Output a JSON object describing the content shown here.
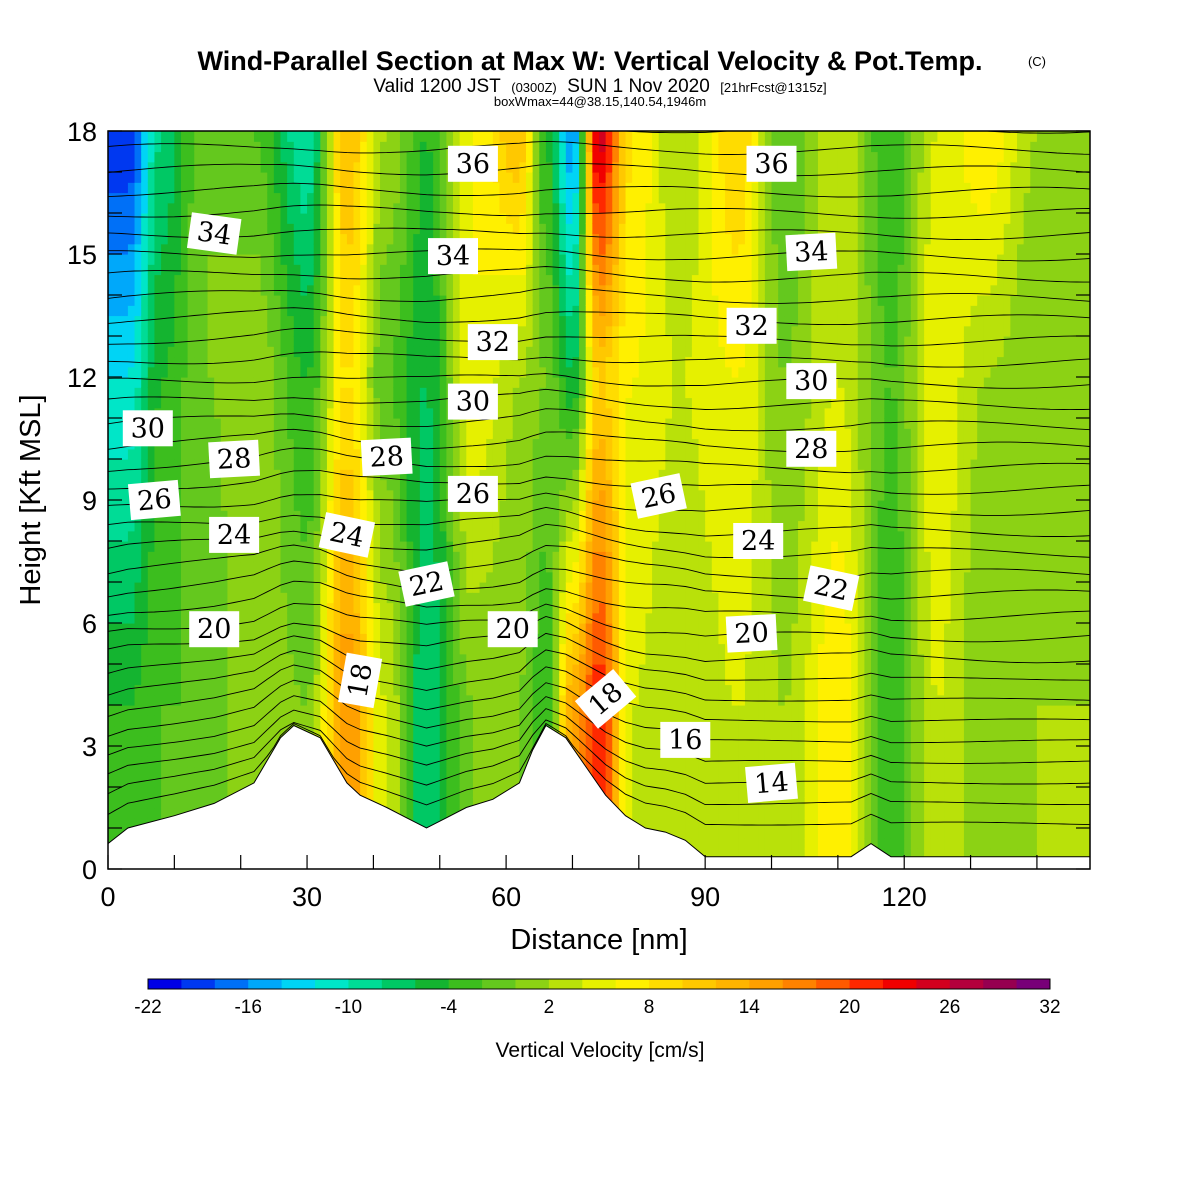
{
  "title": {
    "main": "Wind-Parallel Section at Max W: Vertical Velocity & Pot.Temp.",
    "main_suffix": "(C)",
    "valid_prefix": "Valid 1200 JST",
    "valid_utc": "(0300Z)",
    "valid_date": "SUN 1 Nov 2020",
    "valid_fcst": "[21hrFcst@1315z]",
    "box": "boxWmax=44@38.15,140.54,1946m"
  },
  "chart_data": {
    "type": "contour",
    "xlabel": "Distance [nm]",
    "ylabel": "Height [Kft MSL]",
    "xlim": [
      0,
      148
    ],
    "ylim": [
      0,
      18
    ],
    "x_ticks": [
      "0",
      "30",
      "60",
      "90",
      "120"
    ],
    "y_ticks": [
      "0",
      "3",
      "6",
      "9",
      "12",
      "15",
      "18"
    ],
    "x_tick_values": [
      0,
      30,
      60,
      90,
      120
    ],
    "y_tick_values": [
      0,
      3,
      6,
      9,
      12,
      15,
      18
    ],
    "colorbar": {
      "label": "Vertical Velocity [cm/s]",
      "levels": [
        -22,
        -20,
        -18,
        -16,
        -14,
        -12,
        -10,
        -8,
        -6,
        -4,
        -2,
        0,
        2,
        4,
        6,
        8,
        10,
        12,
        14,
        16,
        18,
        20,
        22,
        24,
        26,
        28,
        30,
        32
      ],
      "tick_labels": [
        "-22",
        "-16",
        "-10",
        "-4",
        "2",
        "8",
        "14",
        "20",
        "26",
        "32"
      ],
      "tick_values": [
        -22,
        -16,
        -10,
        -4,
        2,
        8,
        14,
        20,
        26,
        32
      ],
      "colors": [
        "#0000e6",
        "#0038f0",
        "#0070f7",
        "#00a8fa",
        "#00d4f5",
        "#00e6c8",
        "#00dc96",
        "#00c864",
        "#14b430",
        "#3cbe1e",
        "#64c81e",
        "#8cd214",
        "#b9e10a",
        "#e6f000",
        "#fff000",
        "#ffdc00",
        "#ffc800",
        "#ffb400",
        "#ffa000",
        "#ff8200",
        "#ff5a00",
        "#ff2800",
        "#f00000",
        "#d2001e",
        "#b4003c",
        "#960050",
        "#780078"
      ]
    },
    "terrain_kft": {
      "x": [
        0,
        3,
        10,
        16,
        22,
        26,
        28,
        32,
        36,
        38,
        42,
        45,
        48,
        51,
        54,
        58,
        62,
        64,
        66,
        69,
        72,
        75,
        78,
        81,
        84,
        87,
        90,
        95,
        105,
        112,
        115,
        118,
        125,
        148
      ],
      "h": [
        0.62,
        1.0,
        1.3,
        1.6,
        2.1,
        3.2,
        3.5,
        3.2,
        2.1,
        1.8,
        1.5,
        1.25,
        1.0,
        1.25,
        1.5,
        1.7,
        2.1,
        2.9,
        3.5,
        3.2,
        2.5,
        1.8,
        1.3,
        1.0,
        0.9,
        0.7,
        0.3,
        0.3,
        0.3,
        0.3,
        0.62,
        0.3,
        0.3,
        0.3
      ]
    },
    "vertical_velocity_columns": [
      {
        "x": 3,
        "w_top": -20,
        "w_mid": -12,
        "w_low": -4
      },
      {
        "x": 8,
        "w_top": -8,
        "w_mid": -4,
        "w_low": -2
      },
      {
        "x": 15,
        "w_top": 0,
        "w_mid": 0,
        "w_low": -2
      },
      {
        "x": 22,
        "w_top": -2,
        "w_mid": 2,
        "w_low": 2
      },
      {
        "x": 30,
        "w_top": -10,
        "w_mid": -4,
        "w_low": 0
      },
      {
        "x": 36,
        "w_top": 12,
        "w_mid": 8,
        "w_low": 16
      },
      {
        "x": 42,
        "w_top": 2,
        "w_mid": -2,
        "w_low": 4
      },
      {
        "x": 48,
        "w_top": -4,
        "w_mid": -6,
        "w_low": -8
      },
      {
        "x": 55,
        "w_top": 6,
        "w_mid": 6,
        "w_low": 0
      },
      {
        "x": 62,
        "w_top": 12,
        "w_mid": 2,
        "w_low": 0
      },
      {
        "x": 66,
        "w_top": -4,
        "w_mid": 0,
        "w_low": -4
      },
      {
        "x": 70,
        "w_top": -16,
        "w_mid": -6,
        "w_low": 14
      },
      {
        "x": 74,
        "w_top": 26,
        "w_mid": 10,
        "w_low": 22
      },
      {
        "x": 79,
        "w_top": 8,
        "w_mid": 6,
        "w_low": 4
      },
      {
        "x": 86,
        "w_top": 2,
        "w_mid": 4,
        "w_low": 2
      },
      {
        "x": 95,
        "w_top": 10,
        "w_mid": 6,
        "w_low": 4
      },
      {
        "x": 102,
        "w_top": -2,
        "w_mid": 0,
        "w_low": 2
      },
      {
        "x": 110,
        "w_top": 4,
        "w_mid": 4,
        "w_low": 8
      },
      {
        "x": 118,
        "w_top": -4,
        "w_mid": -2,
        "w_low": -4
      },
      {
        "x": 125,
        "w_top": 4,
        "w_mid": 6,
        "w_low": 4
      },
      {
        "x": 132,
        "w_top": 8,
        "w_mid": 2,
        "w_low": 0
      },
      {
        "x": 140,
        "w_top": 2,
        "w_mid": 0,
        "w_low": 2
      },
      {
        "x": 148,
        "w_top": 0,
        "w_mid": 0,
        "w_low": 2
      }
    ],
    "isentrope_labels": [
      {
        "text": "36",
        "x": 55,
        "y": 17.2,
        "rot": 0
      },
      {
        "text": "36",
        "x": 100,
        "y": 17.2,
        "rot": 0
      },
      {
        "text": "34",
        "x": 16,
        "y": 15.5,
        "rot": 8
      },
      {
        "text": "34",
        "x": 52,
        "y": 14.95,
        "rot": 0
      },
      {
        "text": "34",
        "x": 106,
        "y": 15.05,
        "rot": -3
      },
      {
        "text": "32",
        "x": 58,
        "y": 12.85,
        "rot": 0
      },
      {
        "text": "32",
        "x": 97,
        "y": 13.25,
        "rot": 0
      },
      {
        "text": "30",
        "x": 6,
        "y": 10.75,
        "rot": 0
      },
      {
        "text": "30",
        "x": 55,
        "y": 11.4,
        "rot": 0
      },
      {
        "text": "30",
        "x": 106,
        "y": 11.9,
        "rot": 0
      },
      {
        "text": "28",
        "x": 19,
        "y": 10.0,
        "rot": -3
      },
      {
        "text": "28",
        "x": 42,
        "y": 10.05,
        "rot": -3
      },
      {
        "text": "28",
        "x": 106,
        "y": 10.25,
        "rot": 0
      },
      {
        "text": "26",
        "x": 7,
        "y": 9.0,
        "rot": -5
      },
      {
        "text": "26",
        "x": 55,
        "y": 9.15,
        "rot": 0
      },
      {
        "text": "26",
        "x": 83,
        "y": 9.1,
        "rot": -12
      },
      {
        "text": "24",
        "x": 19,
        "y": 8.15,
        "rot": 0
      },
      {
        "text": "24",
        "x": 36,
        "y": 8.15,
        "rot": 12
      },
      {
        "text": "24",
        "x": 98,
        "y": 8.0,
        "rot": 0
      },
      {
        "text": "22",
        "x": 48,
        "y": 6.95,
        "rot": -12
      },
      {
        "text": "22",
        "x": 109,
        "y": 6.85,
        "rot": 12
      },
      {
        "text": "20",
        "x": 16,
        "y": 5.85,
        "rot": 0
      },
      {
        "text": "20",
        "x": 61,
        "y": 5.85,
        "rot": 0
      },
      {
        "text": "20",
        "x": 97,
        "y": 5.75,
        "rot": -3
      },
      {
        "text": "18",
        "x": 38,
        "y": 4.6,
        "rot": -80
      },
      {
        "text": "18",
        "x": 75,
        "y": 4.15,
        "rot": -40
      },
      {
        "text": "16",
        "x": 87,
        "y": 3.15,
        "rot": 0
      },
      {
        "text": "14",
        "x": 100,
        "y": 2.1,
        "rot": -5
      }
    ]
  }
}
